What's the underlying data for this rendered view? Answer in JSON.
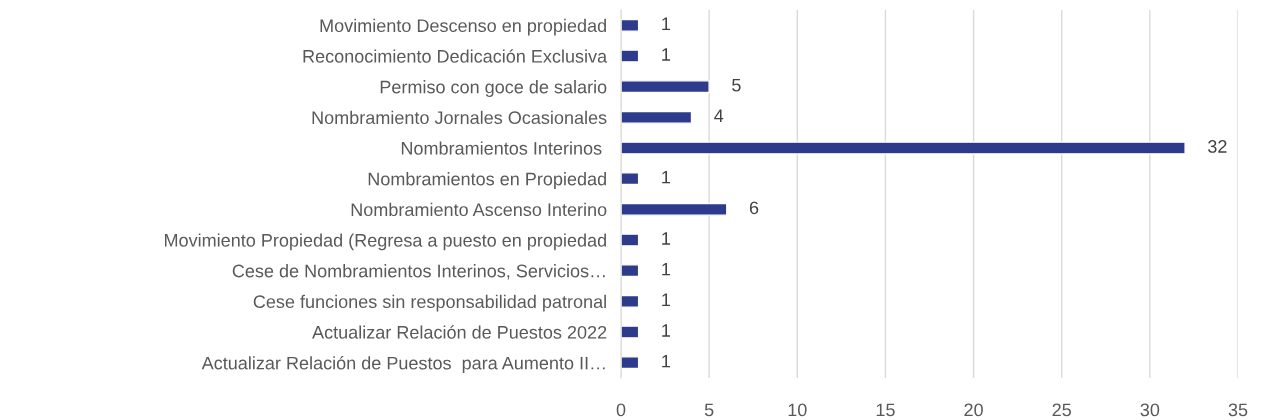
{
  "chart_data": {
    "type": "bar",
    "orientation": "horizontal",
    "categories": [
      "Movimiento Descenso en propiedad",
      "Reconocimiento Dedicación Exclusiva",
      "Permiso con goce de salario",
      "Nombramiento Jornales Ocasionales",
      "Nombramientos Interinos ",
      "Nombramientos en Propiedad",
      "Nombramiento Ascenso Interino",
      "Movimiento Propiedad (Regresa a puesto en propiedad",
      "Cese de Nombramientos Interinos, Servicios…",
      "Cese funciones sin responsabilidad patronal",
      "Actualizar Relación de Puestos 2022",
      "Actualizar Relación de Puestos  para Aumento II…"
    ],
    "values": [
      1,
      1,
      5,
      4,
      32,
      1,
      6,
      1,
      1,
      1,
      1,
      1
    ],
    "color": "#2e3a8c",
    "xlim": [
      0,
      35
    ],
    "xticks": [
      0,
      5,
      10,
      15,
      20,
      25,
      30,
      35
    ],
    "grid": "x",
    "data_labels": true
  }
}
